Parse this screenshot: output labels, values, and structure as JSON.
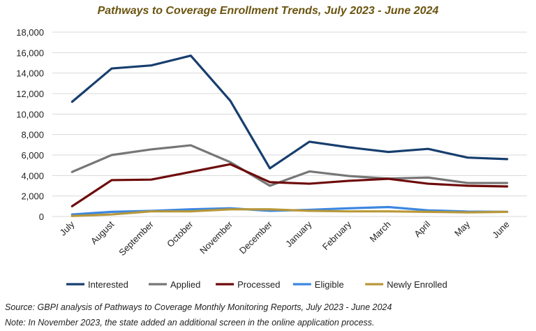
{
  "chart_data": {
    "type": "line",
    "title": "Pathways to Coverage Enrollment Trends, July 2023 - June 2024",
    "xlabel": "",
    "ylabel": "",
    "ylim": [
      0,
      18000
    ],
    "yticks": [
      0,
      2000,
      4000,
      6000,
      8000,
      10000,
      12000,
      14000,
      16000,
      18000
    ],
    "ytick_labels": [
      "0",
      "2,000",
      "4,000",
      "6,000",
      "8,000",
      "10,000",
      "12,000",
      "14,000",
      "16,000",
      "18,000"
    ],
    "grid": true,
    "legend_placement": "bottom",
    "categories": [
      "July",
      "August",
      "September",
      "October",
      "November",
      "December",
      "January",
      "February",
      "March",
      "April",
      "May",
      "June"
    ],
    "series": [
      {
        "name": "Interested",
        "color": "#173e6e",
        "values": [
          11200,
          14450,
          14750,
          15700,
          11300,
          4700,
          7300,
          6750,
          6300,
          6600,
          5750,
          5600
        ]
      },
      {
        "name": "Applied",
        "color": "#767676",
        "values": [
          4350,
          6000,
          6550,
          6950,
          5300,
          3000,
          4400,
          3950,
          3700,
          3800,
          3270,
          3270
        ]
      },
      {
        "name": "Processed",
        "color": "#6e0a0a",
        "values": [
          1000,
          3550,
          3600,
          4350,
          5100,
          3350,
          3200,
          3480,
          3680,
          3200,
          3000,
          2930
        ]
      },
      {
        "name": "Eligible",
        "color": "#3c87e0",
        "values": [
          200,
          450,
          550,
          700,
          800,
          550,
          650,
          800,
          920,
          600,
          480,
          450
        ]
      },
      {
        "name": "Newly Enrolled",
        "color": "#b8983a",
        "values": [
          50,
          200,
          500,
          500,
          700,
          700,
          550,
          500,
          500,
          450,
          400,
          450
        ]
      }
    ]
  },
  "notes": {
    "source": "Source: GBPI analysis of Pathways to Coverage Monthly Monitoring Reports, July 2023 - June 2024",
    "note": "Note: In November 2023, the state added an additional screen in the online application process."
  }
}
